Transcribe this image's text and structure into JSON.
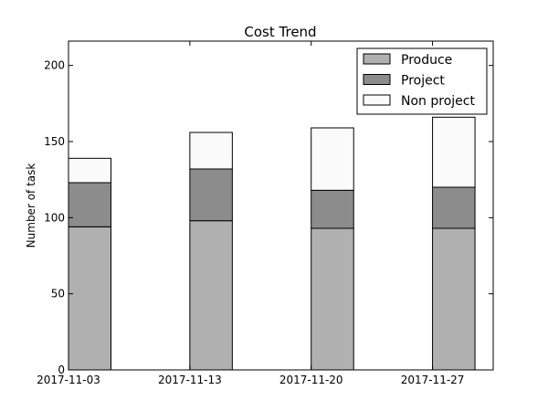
{
  "chart_data": {
    "type": "bar",
    "stacked": true,
    "title": "Cost Trend",
    "xlabel": "",
    "ylabel": "Number of task",
    "categories": [
      "2017-11-03",
      "2017-11-13",
      "2017-11-20",
      "2017-11-27"
    ],
    "series": [
      {
        "name": "Produce",
        "values": [
          94,
          98,
          93,
          93
        ],
        "color": "#b0b0b0"
      },
      {
        "name": "Project",
        "values": [
          29,
          34,
          25,
          27
        ],
        "color": "#8c8c8c"
      },
      {
        "name": "Non project",
        "values": [
          16,
          24,
          41,
          46
        ],
        "color": "#fafafa"
      }
    ],
    "ylim": [
      0,
      216
    ],
    "yticks": [
      0,
      50,
      100,
      150,
      200
    ],
    "grid": false,
    "legend_position": "top-right"
  }
}
